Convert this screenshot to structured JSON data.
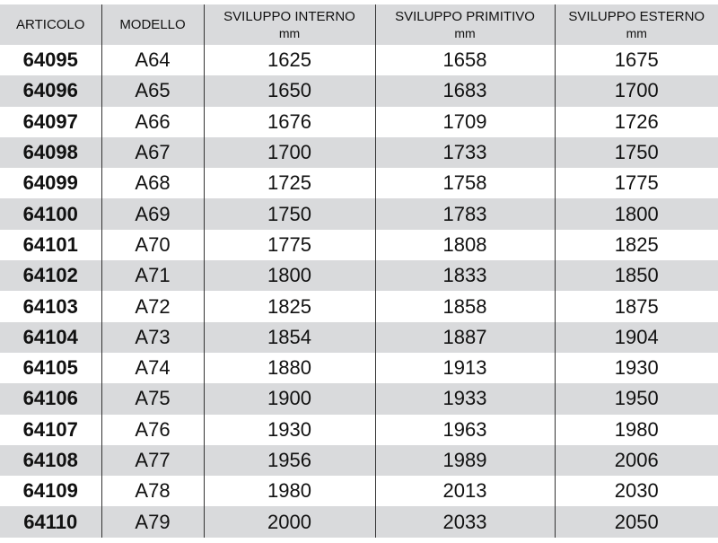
{
  "headers": [
    {
      "label": "ARTICOLO",
      "unit": ""
    },
    {
      "label": "MODELLO",
      "unit": ""
    },
    {
      "label": "SVILUPPO INTERNO",
      "unit": "mm"
    },
    {
      "label": "SVILUPPO PRIMITIVO",
      "unit": "mm"
    },
    {
      "label": "SVILUPPO ESTERNO",
      "unit": "mm"
    }
  ],
  "rows": [
    [
      "64095",
      "A64",
      "1625",
      "1658",
      "1675"
    ],
    [
      "64096",
      "A65",
      "1650",
      "1683",
      "1700"
    ],
    [
      "64097",
      "A66",
      "1676",
      "1709",
      "1726"
    ],
    [
      "64098",
      "A67",
      "1700",
      "1733",
      "1750"
    ],
    [
      "64099",
      "A68",
      "1725",
      "1758",
      "1775"
    ],
    [
      "64100",
      "A69",
      "1750",
      "1783",
      "1800"
    ],
    [
      "64101",
      "A70",
      "1775",
      "1808",
      "1825"
    ],
    [
      "64102",
      "A71",
      "1800",
      "1833",
      "1850"
    ],
    [
      "64103",
      "A72",
      "1825",
      "1858",
      "1875"
    ],
    [
      "64104",
      "A73",
      "1854",
      "1887",
      "1904"
    ],
    [
      "64105",
      "A74",
      "1880",
      "1913",
      "1930"
    ],
    [
      "64106",
      "A75",
      "1900",
      "1933",
      "1950"
    ],
    [
      "64107",
      "A76",
      "1930",
      "1963",
      "1980"
    ],
    [
      "64108",
      "A77",
      "1956",
      "1989",
      "2006"
    ],
    [
      "64109",
      "A78",
      "1980",
      "2013",
      "2030"
    ],
    [
      "64110",
      "A79",
      "2000",
      "2033",
      "2050"
    ]
  ],
  "colors": {
    "stripe": "#d9dadc",
    "divider": "#333333"
  }
}
